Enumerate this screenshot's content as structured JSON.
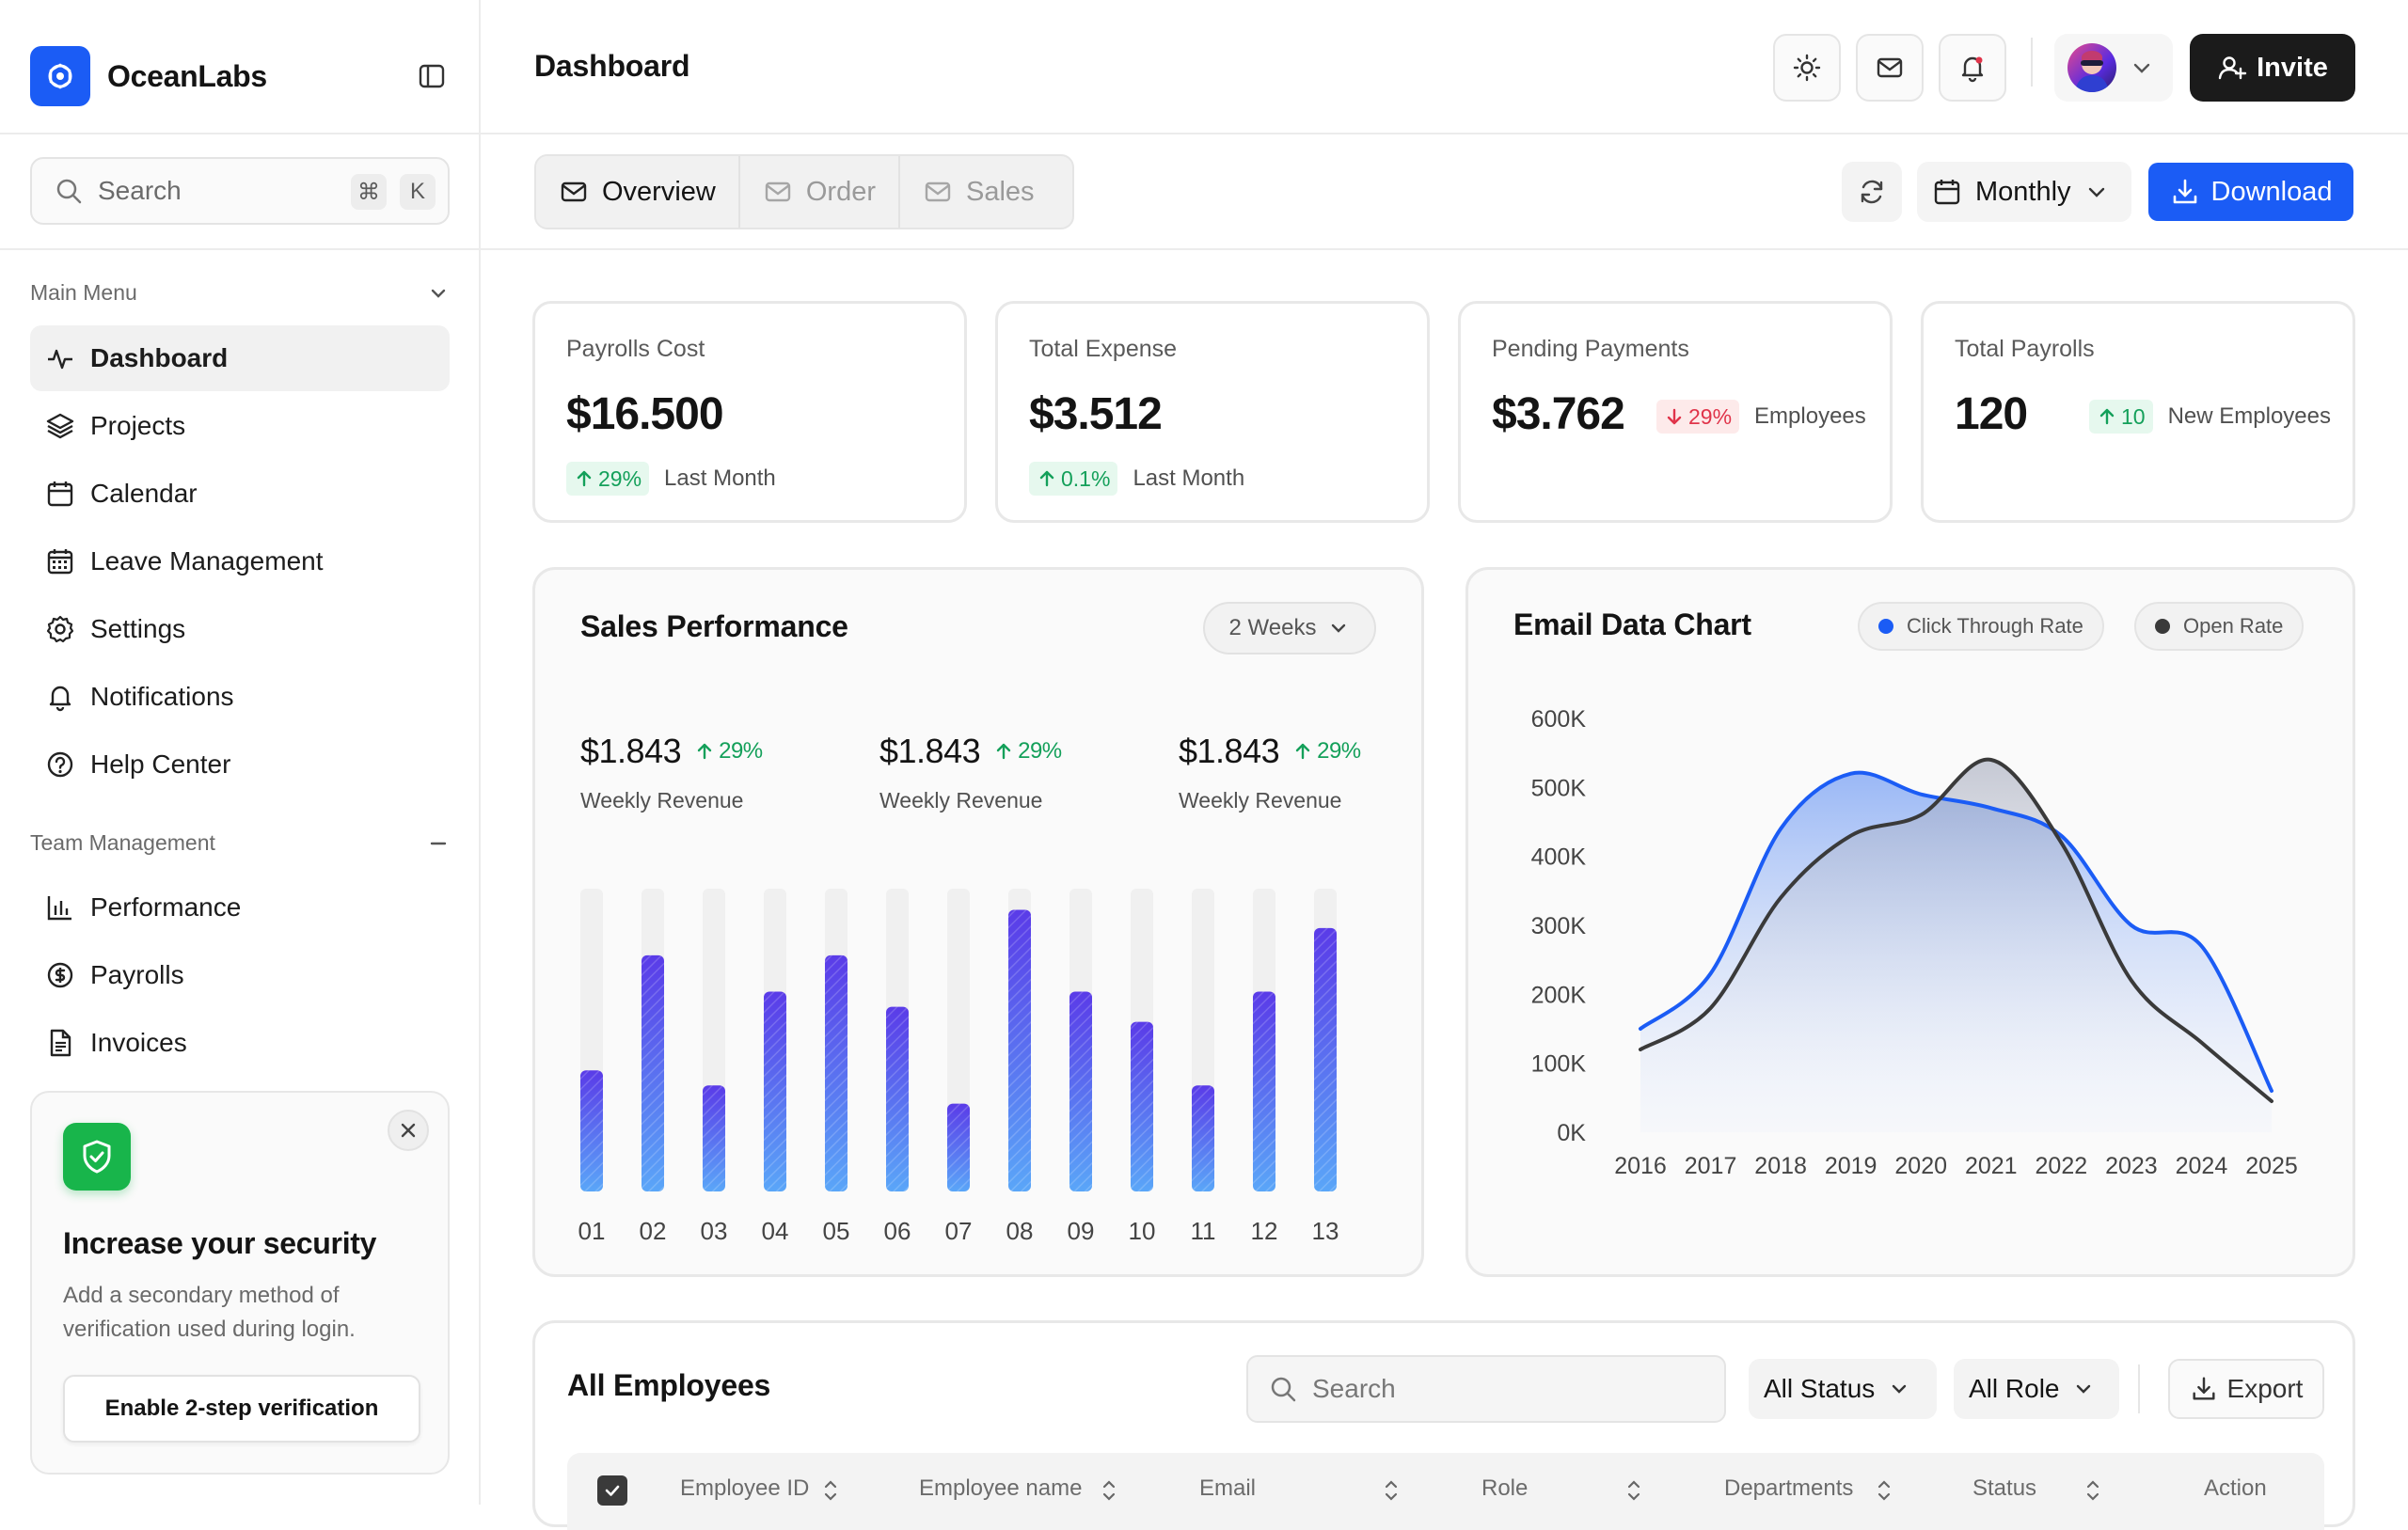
{
  "brand": {
    "name": "OceanLabs"
  },
  "sidebar": {
    "search": {
      "placeholder": "Search",
      "shortcut_mod": "⌘",
      "shortcut_key": "K"
    },
    "main_menu": {
      "title": "Main Menu",
      "items": [
        {
          "label": "Dashboard",
          "icon": "activity-icon",
          "active": true
        },
        {
          "label": "Projects",
          "icon": "layers-icon"
        },
        {
          "label": "Calendar",
          "icon": "calendar-icon"
        },
        {
          "label": "Leave Management",
          "icon": "calendar-grid-icon"
        },
        {
          "label": "Settings",
          "icon": "gear-icon"
        },
        {
          "label": "Notifications",
          "icon": "bell-icon"
        },
        {
          "label": "Help Center",
          "icon": "help-circle-icon"
        }
      ]
    },
    "team_management": {
      "title": "Team Management",
      "items": [
        {
          "label": "Performance",
          "icon": "bar-chart-icon"
        },
        {
          "label": "Payrolls",
          "icon": "dollar-circle-icon"
        },
        {
          "label": "Invoices",
          "icon": "document-icon"
        }
      ]
    },
    "security_card": {
      "title": "Increase your security",
      "description": "Add a secondary method of verification used during login.",
      "button": "Enable 2-step verification"
    }
  },
  "header": {
    "title": "Dashboard",
    "invite_label": "Invite"
  },
  "toolbar": {
    "tabs": [
      {
        "label": "Overview",
        "active": true
      },
      {
        "label": "Order",
        "active": false
      },
      {
        "label": "Sales",
        "active": false
      }
    ],
    "period": "Monthly",
    "download_label": "Download"
  },
  "stats": [
    {
      "title": "Payrolls Cost",
      "value": "$16.500",
      "badge": "29%",
      "trend": "up",
      "note": "Last Month"
    },
    {
      "title": "Total Expense",
      "value": "$3.512",
      "badge": "0.1%",
      "trend": "up",
      "note": "Last Month"
    },
    {
      "title": "Pending Payments",
      "value": "$3.762",
      "badge": "29%",
      "trend": "down",
      "note": "Employees"
    },
    {
      "title": "Total Payrolls",
      "value": "120",
      "badge": "10",
      "trend": "up",
      "note": "New Employees"
    }
  ],
  "sales_performance": {
    "title": "Sales Performance",
    "range": "2 Weeks",
    "revenues": [
      {
        "amount": "$1.843",
        "change": "29%",
        "label": "Weekly Revenue"
      },
      {
        "amount": "$1.843",
        "change": "29%",
        "label": "Weekly Revenue"
      },
      {
        "amount": "$1.843",
        "change": "29%",
        "label": "Weekly Revenue"
      }
    ]
  },
  "email_chart": {
    "title": "Email Data Chart",
    "legend": [
      {
        "label": "Click Through Rate",
        "color": "#1b5cf5"
      },
      {
        "label": "Open Rate",
        "color": "#3a3a3a"
      }
    ]
  },
  "chart_data": [
    {
      "type": "bar",
      "categories": [
        "01",
        "02",
        "03",
        "04",
        "05",
        "06",
        "07",
        "08",
        "09",
        "10",
        "11",
        "12",
        "13"
      ],
      "values": [
        40,
        78,
        35,
        66,
        78,
        61,
        29,
        93,
        66,
        56,
        35,
        66,
        87
      ],
      "ylim": [
        0,
        100
      ],
      "grid": false,
      "colors": {
        "bar_top": "#5a3be8",
        "bar_bottom": "#5aa6f8",
        "track": "#f0f0f0"
      }
    },
    {
      "type": "area",
      "x": [
        "2016",
        "2017",
        "2018",
        "2019",
        "2020",
        "2021",
        "2022",
        "2023",
        "2024",
        "2025"
      ],
      "yticks": [
        "0K",
        "100K",
        "200K",
        "300K",
        "400K",
        "500K",
        "600K"
      ],
      "ylim": [
        0,
        600000
      ],
      "series": [
        {
          "name": "Click Through Rate",
          "values": [
            150000,
            230000,
            440000,
            520000,
            490000,
            470000,
            430000,
            300000,
            270000,
            60000
          ]
        },
        {
          "name": "Open Rate",
          "values": [
            120000,
            180000,
            340000,
            430000,
            460000,
            540000,
            420000,
            220000,
            130000,
            45000
          ]
        }
      ],
      "legend": "top-right",
      "grid": false
    }
  ],
  "employees": {
    "title": "All Employees",
    "search_placeholder": "Search",
    "status_filter": "All Status",
    "role_filter": "All Role",
    "export_label": "Export",
    "columns": [
      "Employee ID",
      "Employee name",
      "Email",
      "Role",
      "Departments",
      "Status",
      "Action"
    ]
  }
}
